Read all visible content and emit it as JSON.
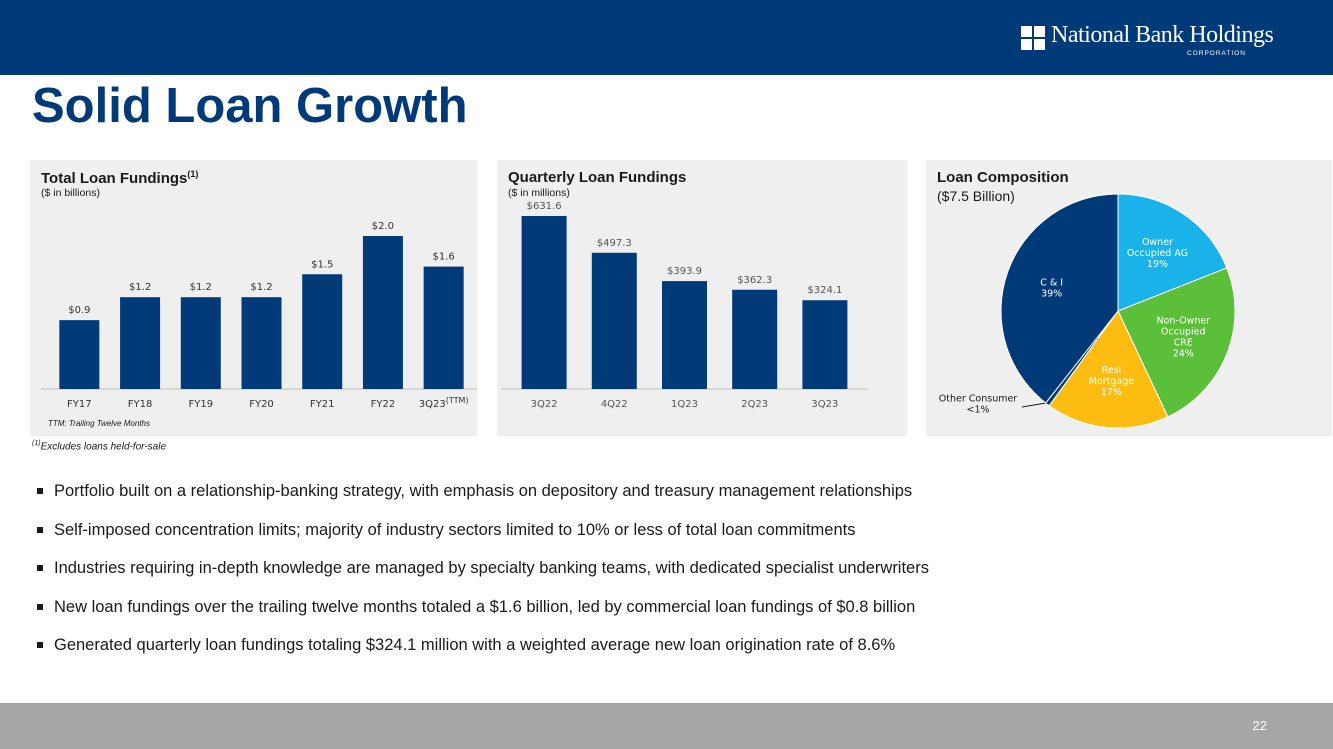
{
  "header": {
    "logo_text": "National Bank Holdings",
    "logo_sub": "CORPORATION",
    "title": "Solid Loan Growth"
  },
  "colors": {
    "navy": "#003a78",
    "bar": "#003a78",
    "light_blue": "#19b3ea",
    "green": "#5cbf3a",
    "gold": "#fdbd10",
    "panel_bg": "#efefef",
    "footer": "#a6a6a6"
  },
  "chart_data": [
    {
      "type": "bar",
      "title": "Total Loan Fundings",
      "title_sup": "(1)",
      "subtitle": "($ in billions)",
      "categories": [
        "FY17",
        "FY18",
        "FY19",
        "FY20",
        "FY21",
        "FY22",
        "3Q23"
      ],
      "last_category_sup": "(TTM)",
      "values": [
        0.9,
        1.2,
        1.2,
        1.2,
        1.5,
        2.0,
        1.6
      ],
      "labels": [
        "$0.9",
        "$1.2",
        "$1.2",
        "$1.2",
        "$1.5",
        "$2.0",
        "$1.6"
      ],
      "ylim": [
        0,
        2.0
      ],
      "note": "TTM: Trailing Twelve Months"
    },
    {
      "type": "bar",
      "title": "Quarterly Loan Fundings",
      "subtitle": "($ in millions)",
      "categories": [
        "3Q22",
        "4Q22",
        "1Q23",
        "2Q23",
        "3Q23"
      ],
      "values": [
        631.6,
        497.3,
        393.9,
        362.3,
        324.1
      ],
      "labels": [
        "$631.6",
        "$497.3",
        "$393.9",
        "$362.3",
        "$324.1"
      ],
      "ylim": [
        0,
        631.6
      ]
    },
    {
      "type": "pie",
      "title": "Loan Composition",
      "subtitle": "($7.5 Billion)",
      "slices": [
        {
          "name": "Owner Occupied AG",
          "lines": [
            "Owner",
            "Occupied AG",
            "19%"
          ],
          "value": 19,
          "color": "#19b3ea",
          "text_color": "#ffffff"
        },
        {
          "name": "Non-Owner Occupied CRE",
          "lines": [
            "Non-Owner",
            "Occupied",
            "CRE",
            "24%"
          ],
          "value": 24,
          "color": "#5cbf3a",
          "text_color": "#ffffff"
        },
        {
          "name": "Resi Mortgage",
          "lines": [
            "Resi",
            "Mortgage",
            "17%"
          ],
          "value": 17,
          "color": "#fdbd10",
          "text_color": "#ffffff"
        },
        {
          "name": "Other Consumer",
          "lines": [
            "Other Consumer",
            "<1%"
          ],
          "value": 0.6,
          "color": "#003a78",
          "text_color": "#1a1a1a"
        },
        {
          "name": "C & I",
          "lines": [
            "C & I",
            "39%"
          ],
          "value": 39.4,
          "color": "#003a78",
          "text_color": "#ffffff"
        }
      ]
    }
  ],
  "footnote": {
    "sup": "(1)",
    "text": "Excludes loans held-for-sale"
  },
  "bullets": [
    "Portfolio built on a relationship-banking strategy, with emphasis on depository and treasury management relationships",
    "Self-imposed concentration limits; majority of industry sectors limited to 10% or less of total loan commitments",
    "Industries requiring in-depth knowledge are managed by specialty banking teams, with dedicated specialist underwriters",
    "New loan fundings over the trailing twelve months totaled a $1.6 billion, led by commercial loan fundings of $0.8 billion",
    "Generated quarterly loan fundings totaling $324.1 million with a weighted average new loan origination rate of 8.6%"
  ],
  "page_number": "22"
}
